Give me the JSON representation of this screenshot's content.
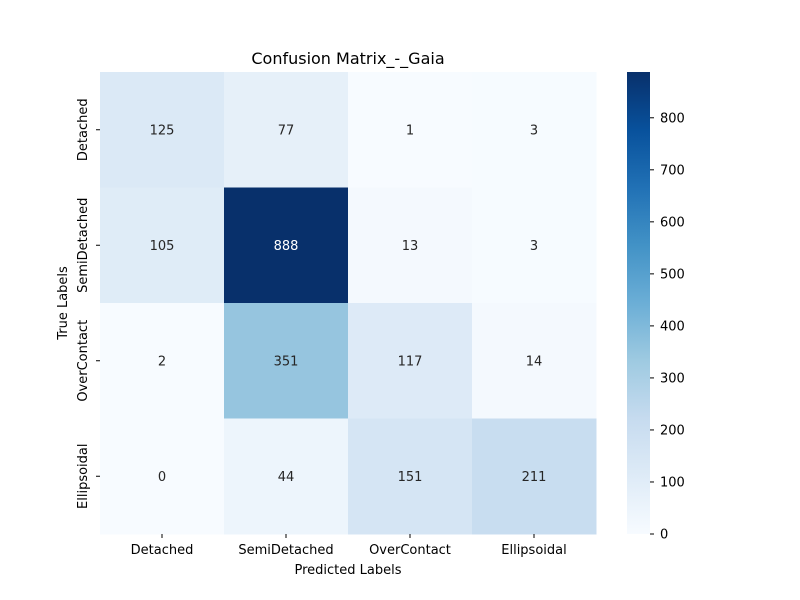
{
  "chart_data": {
    "type": "heatmap",
    "title": "Confusion Matrix_-_Gaia",
    "xlabel": "Predicted Labels",
    "ylabel": "True Labels",
    "x_categories": [
      "Detached",
      "SemiDetached",
      "OverContact",
      "Ellipsoidal"
    ],
    "y_categories": [
      "Detached",
      "SemiDetached",
      "OverContact",
      "Ellipsoidal"
    ],
    "values": [
      [
        125,
        77,
        1,
        3
      ],
      [
        105,
        888,
        13,
        3
      ],
      [
        2,
        351,
        117,
        14
      ],
      [
        0,
        44,
        151,
        211
      ]
    ],
    "colormap": "Blues",
    "colorbar": {
      "range": [
        0,
        888
      ],
      "ticks": [
        0,
        100,
        200,
        300,
        400,
        500,
        600,
        700,
        800
      ]
    },
    "grid": false
  }
}
